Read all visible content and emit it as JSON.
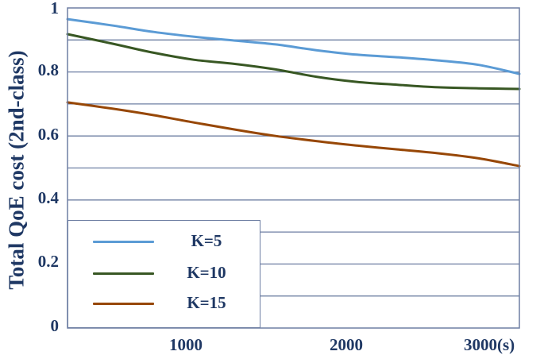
{
  "chart_data": {
    "type": "line",
    "title": "",
    "xlabel": "",
    "ylabel": "Total QoE cost (2nd-class)",
    "xlim": [
      220,
      3000
    ],
    "ylim": [
      0,
      1
    ],
    "x_ticks": [
      1000,
      2000,
      3000
    ],
    "x_tick_labels": [
      "1000",
      "2000",
      "3000(s)"
    ],
    "y_ticks": [
      0,
      0.2,
      0.4,
      0.6,
      0.8,
      1
    ],
    "y_tick_labels": [
      "0",
      "0.2",
      "0.4",
      "0.6",
      "0.8",
      "1"
    ],
    "grid": {
      "horizontal": true,
      "step": 0.1,
      "vertical": false
    },
    "legend_position": "lower-left",
    "x": [
      220,
      500,
      750,
      1000,
      1250,
      1500,
      1750,
      2000,
      2250,
      2500,
      2750,
      3000
    ],
    "series": [
      {
        "name": "K=5",
        "color": "#5b9bd5",
        "values": [
          0.965,
          0.945,
          0.925,
          0.91,
          0.898,
          0.886,
          0.868,
          0.854,
          0.846,
          0.836,
          0.822,
          0.794
        ]
      },
      {
        "name": "K=10",
        "color": "#385723",
        "values": [
          0.918,
          0.888,
          0.86,
          0.838,
          0.825,
          0.808,
          0.785,
          0.769,
          0.76,
          0.752,
          0.749,
          0.747
        ]
      },
      {
        "name": "K=15",
        "color": "#974706",
        "values": [
          0.705,
          0.685,
          0.665,
          0.642,
          0.62,
          0.6,
          0.584,
          0.57,
          0.558,
          0.546,
          0.53,
          0.506
        ]
      }
    ]
  },
  "axis": {
    "ylabel": "Total QoE cost (2nd-class)",
    "y_tick_labels": [
      "1",
      "0.8",
      "0.6",
      "0.4",
      "0.2",
      "0"
    ],
    "x_tick_labels": [
      "1000",
      "2000",
      "3000(s)"
    ]
  },
  "legend": {
    "items": [
      {
        "label": "K=5",
        "color": "#5b9bd5"
      },
      {
        "label": "K=10",
        "color": "#385723"
      },
      {
        "label": "K=15",
        "color": "#974706"
      }
    ]
  },
  "colors": {
    "text": "#1f3864",
    "grid": "#6e7fa3",
    "axis": "#6e7fa3"
  }
}
